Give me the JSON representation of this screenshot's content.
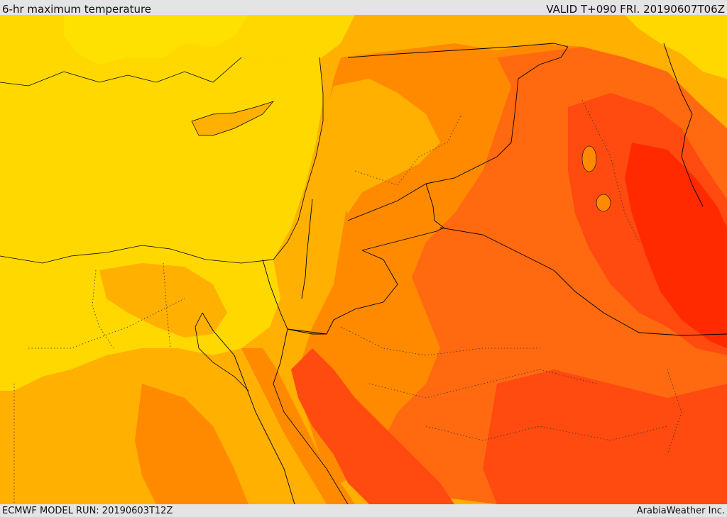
{
  "header": {
    "title": "6-hr maximum temperature",
    "valid": "VALID T+090 FRI. 20190607T06Z"
  },
  "footer": {
    "model_run": "ECMWF MODEL RUN: 20190603T12Z",
    "credit": "ArabiaWeather Inc."
  },
  "map": {
    "field": "6-hr maximum temperature",
    "colors": {
      "cool_yellow": "#ffe100",
      "sea_yellow": "#ffd800",
      "light_orange": "#ffb000",
      "orange": "#ff8a00",
      "deep_orange": "#ff6a10",
      "red_orange": "#ff4a10",
      "red": "#ff2a00",
      "border": "#000000"
    }
  }
}
